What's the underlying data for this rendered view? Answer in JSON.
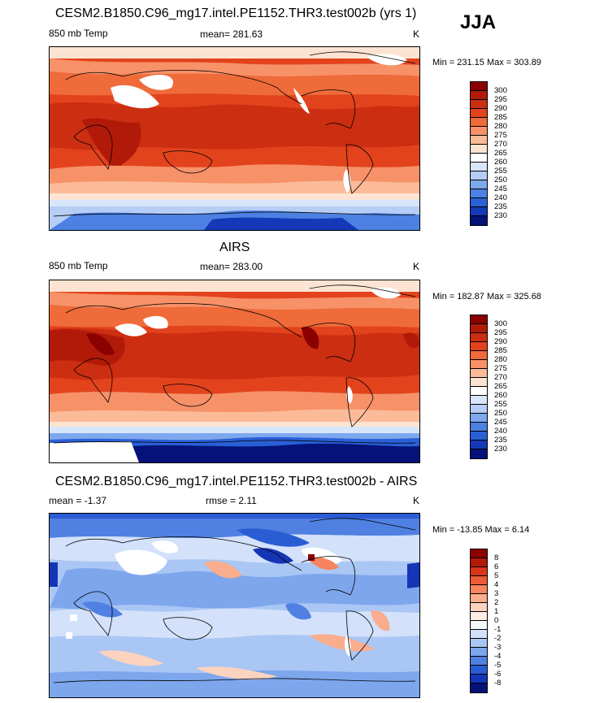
{
  "season": "JJA",
  "units": "K",
  "panels": [
    {
      "title": "CESM2.B1850.C96_mg17.intel.PE1152.THR3.test002b (yrs 1)",
      "left_label": "850 mb Temp",
      "stat": "mean= 281.63",
      "units": "K",
      "minmax": "Min = 231.15 Max = 303.89",
      "levels": [
        "300",
        "295",
        "290",
        "285",
        "280",
        "275",
        "270",
        "265",
        "260",
        "255",
        "250",
        "245",
        "240",
        "235",
        "230"
      ],
      "colors": [
        "#8b0000",
        "#b11a08",
        "#cc2e11",
        "#e2431d",
        "#ef6b3a",
        "#f79168",
        "#fbbb98",
        "#fde4d2",
        "#ffffff",
        "#d8e6fb",
        "#b6cdf5",
        "#7ea8ee",
        "#4d80e3",
        "#2a5fd6",
        "#1438b8",
        "#04127a"
      ]
    },
    {
      "title": "AIRS",
      "left_label": "850 mb Temp",
      "stat": "mean= 283.00",
      "units": "K",
      "minmax": "Min = 182.87 Max = 325.68",
      "levels": [
        "300",
        "295",
        "290",
        "285",
        "280",
        "275",
        "270",
        "265",
        "260",
        "255",
        "250",
        "245",
        "240",
        "235",
        "230"
      ],
      "colors": [
        "#8b0000",
        "#b11a08",
        "#cc2e11",
        "#e2431d",
        "#ef6b3a",
        "#f79168",
        "#fbbb98",
        "#fde4d2",
        "#ffffff",
        "#d8e6fb",
        "#b6cdf5",
        "#7ea8ee",
        "#4d80e3",
        "#2a5fd6",
        "#1438b8",
        "#04127a"
      ]
    },
    {
      "title": "CESM2.B1850.C96_mg17.intel.PE1152.THR3.test002b - AIRS",
      "left_label": "mean =  -1.37",
      "stat": "rmse =   2.11",
      "units": "K",
      "minmax": "Min = -13.85 Max =   6.14",
      "levels": [
        "8",
        "6",
        "5",
        "4",
        "3",
        "2",
        "1",
        "0",
        "-1",
        "-2",
        "-3",
        "-4",
        "-5",
        "-6",
        "-8"
      ],
      "colors": [
        "#8b0000",
        "#b11a08",
        "#d9351c",
        "#ee5b34",
        "#f6845e",
        "#f9ad8d",
        "#fcd3bf",
        "#fdeee4",
        "#f4f8ff",
        "#d3e1fa",
        "#aac6f4",
        "#7da6ed",
        "#4f80e2",
        "#2a5cd4",
        "#1435b5",
        "#04127a"
      ]
    }
  ]
}
